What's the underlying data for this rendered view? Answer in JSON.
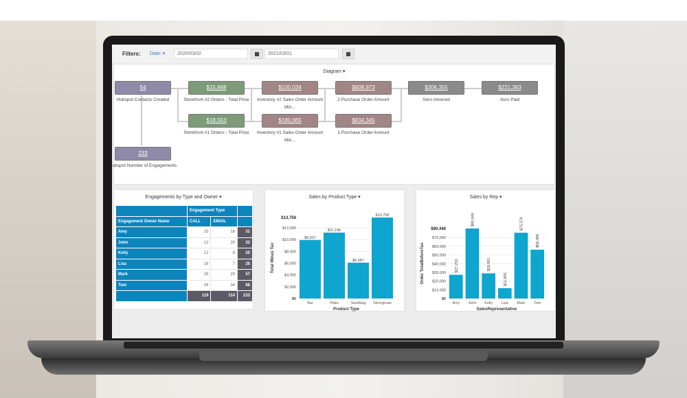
{
  "filters": {
    "label": "Filters:",
    "date_dropdown": "Date: ▾",
    "start_date": "2020/03/02",
    "end_date": "2021/03/01"
  },
  "diagram": {
    "title": "Diagram ▾",
    "nodes": [
      {
        "value": "54",
        "label": "Hubspot Contacts Created",
        "color": "pur"
      },
      {
        "value": "$15,668",
        "label": "Storefront #2 Orders - Total Price",
        "color": "grn"
      },
      {
        "value": "$100,034",
        "label": "Inventory #2 Sales Order Amount Min...",
        "color": "ros"
      },
      {
        "value": "$808,973",
        "label": "2 Purchase Order Amount",
        "color": "ros"
      },
      {
        "value": "$306,355",
        "label": "Xero Invoiced",
        "color": "gry"
      },
      {
        "value": "$221,383",
        "label": "Xero Paid",
        "color": "gry"
      },
      {
        "value": "$18,553",
        "label": "Storefront #1 Orders - Total Price",
        "color": "grn"
      },
      {
        "value": "$180,065",
        "label": "Inventory #1 Sales Order Amount Min...",
        "color": "ros"
      },
      {
        "value": "$834,345",
        "label": "1 Purchase Order Amount",
        "color": "ros"
      },
      {
        "value": "233",
        "label": "Hubspot Number of Engagements",
        "color": "pur"
      }
    ]
  },
  "engagements": {
    "title": "Engagements by Type and Owner ▾",
    "group_header": "Engagement Type",
    "row_header": "Engagement Owner Name",
    "columns": [
      "CALL",
      "EMAIL"
    ],
    "rows": [
      {
        "name": "Amy",
        "call": "15",
        "email": "16",
        "total": "31"
      },
      {
        "name": "John",
        "call": "12",
        "email": "20",
        "total": "32"
      },
      {
        "name": "Kelly",
        "call": "12",
        "email": "8",
        "total": "20"
      },
      {
        "name": "Lisa",
        "call": "18",
        "email": "7",
        "total": "25"
      },
      {
        "name": "Mark",
        "call": "28",
        "email": "29",
        "total": "57"
      },
      {
        "name": "Tom",
        "call": "34",
        "email": "34",
        "total": "68"
      }
    ],
    "totals": {
      "call": "119",
      "email": "114",
      "total": "233"
    }
  },
  "chart_data": [
    {
      "type": "bar",
      "title": "Sales by Product Type ▾",
      "xlabel": "Product Type",
      "ylabel": "Total Minus Tax",
      "categories": [
        "Bar",
        "Plate",
        "Sandbag",
        "Strongman"
      ],
      "values": [
        9937,
        11196,
        6087,
        13758
      ],
      "value_labels": [
        "$9,937",
        "$11,196",
        "$6,087",
        "$13,758"
      ],
      "ylim": [
        0,
        13758
      ],
      "yticks": [
        0,
        2000,
        4000,
        6000,
        8000,
        10000,
        12000
      ],
      "ytick_labels": [
        "$0",
        "$2,000",
        "$4,000",
        "$6,000",
        "$8,000",
        "$10,000",
        "$12,000"
      ],
      "ymax_label": "$13,758",
      "color": "#0ea5cf",
      "grid": true
    },
    {
      "type": "bar",
      "title": "Sales by Rep ▾",
      "xlabel": "SalesRepresentative",
      "ylabel": "Order TotalBeforeTax",
      "categories": [
        "Amy",
        "John",
        "Kelly",
        "Lisa",
        "Mark",
        "Tom"
      ],
      "values": [
        27253,
        80446,
        28891,
        11895,
        75574,
        56096
      ],
      "value_labels": [
        "$27,253",
        "$80,446",
        "$28,891",
        "$11,895",
        "$75,574",
        "$56,096"
      ],
      "ylim": [
        0,
        80448
      ],
      "yticks": [
        0,
        10000,
        20000,
        30000,
        40000,
        50000,
        60000,
        70000
      ],
      "ytick_labels": [
        "$0",
        "$10,000",
        "$20,000",
        "$30,000",
        "$40,000",
        "$50,000",
        "$60,000",
        "$70,000"
      ],
      "ymax_label": "$80,448",
      "color": "#0ea5cf",
      "grid": true
    }
  ]
}
